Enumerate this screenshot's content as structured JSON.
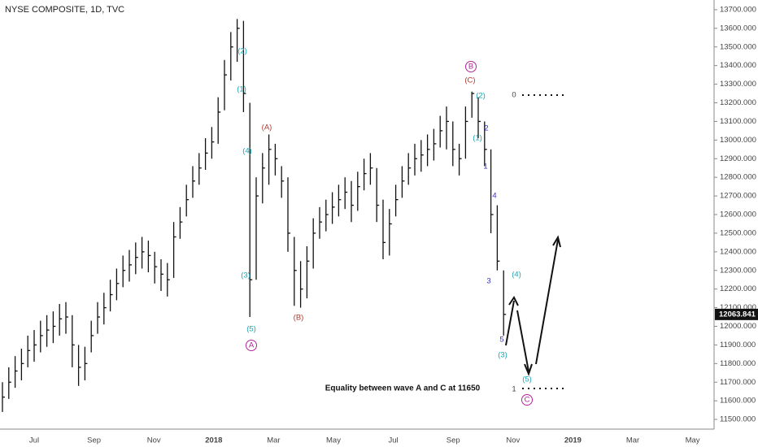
{
  "chart_data": {
    "type": "ohlc",
    "title": "NYSE COMPOSITE, 1D, TVC",
    "color": "#111111",
    "categories": [
      "Jul",
      "Sep",
      "Nov",
      "2018",
      "Mar",
      "May",
      "Jul",
      "Sep",
      "Nov",
      "2019",
      "Mar",
      "May"
    ],
    "close": [
      11620,
      11700,
      11760,
      11800,
      11870,
      11900,
      11950,
      11980,
      12000,
      12040,
      12050,
      11900,
      11780,
      11800,
      11950,
      12050,
      12100,
      12170,
      12230,
      12300,
      12330,
      12370,
      12400,
      12380,
      12320,
      12280,
      12250,
      12480,
      12560,
      12680,
      12780,
      12850,
      12930,
      12990,
      13150,
      13350,
      13500,
      13600,
      13250,
      12250,
      12700,
      12850,
      12950,
      12900,
      12780,
      12500,
      12300,
      12200,
      12350,
      12500,
      12560,
      12600,
      12640,
      12680,
      12720,
      12650,
      12750,
      12820,
      12850,
      12650,
      12450,
      12550,
      12680,
      12780,
      12850,
      12900,
      12920,
      12950,
      12980,
      13050,
      13100,
      12950,
      12900,
      13100,
      13250,
      13100,
      12950,
      12600,
      12350,
      12064
    ],
    "high": [
      11700,
      11780,
      11840,
      11880,
      11950,
      11980,
      12030,
      12060,
      12080,
      12120,
      12130,
      12060,
      11900,
      11890,
      12030,
      12130,
      12180,
      12250,
      12310,
      12380,
      12410,
      12450,
      12480,
      12460,
      12400,
      12360,
      12340,
      12560,
      12640,
      12760,
      12860,
      12930,
      13010,
      13070,
      13230,
      13430,
      13580,
      13650,
      13640,
      13200,
      12800,
      12930,
      13030,
      12980,
      12860,
      12800,
      12480,
      12350,
      12430,
      12580,
      12640,
      12680,
      12720,
      12760,
      12800,
      12780,
      12830,
      12900,
      12930,
      12850,
      12680,
      12630,
      12760,
      12860,
      12930,
      12980,
      13000,
      13030,
      13060,
      13130,
      13180,
      13100,
      12980,
      13180,
      13260,
      13230,
      13100,
      12950,
      12650,
      12300
    ],
    "low": [
      11540,
      11610,
      11670,
      11710,
      11780,
      11810,
      11860,
      11890,
      11910,
      11950,
      11960,
      11780,
      11680,
      11710,
      11860,
      11960,
      12010,
      12080,
      12140,
      12210,
      12240,
      12280,
      12310,
      12290,
      12230,
      12190,
      12160,
      12260,
      12470,
      12590,
      12690,
      12760,
      12840,
      12900,
      12980,
      13160,
      13320,
      13420,
      13150,
      12050,
      12250,
      12660,
      12760,
      12810,
      12690,
      12400,
      12110,
      12100,
      12150,
      12310,
      12470,
      12510,
      12550,
      12590,
      12630,
      12560,
      12620,
      12730,
      12760,
      12560,
      12360,
      12380,
      12590,
      12690,
      12760,
      12810,
      12830,
      12860,
      12890,
      12960,
      12950,
      12860,
      12810,
      12900,
      13120,
      13010,
      12860,
      12500,
      12300,
      11950
    ],
    "last_price": 12063.841,
    "ylim": [
      11448,
      13752
    ],
    "yticks": [
      {
        "value": 11500,
        "label": "11500.000"
      },
      {
        "value": 11600,
        "label": "11600.000"
      },
      {
        "value": 11700,
        "label": "11700.000"
      },
      {
        "value": 11800,
        "label": "11800.000"
      },
      {
        "value": 11900,
        "label": "11900.000"
      },
      {
        "value": 12000,
        "label": "12000.000"
      },
      {
        "value": 12100,
        "label": "12100.000"
      },
      {
        "value": 12200,
        "label": "12200.000"
      },
      {
        "value": 12300,
        "label": "12300.000"
      },
      {
        "value": 12400,
        "label": "12400.000"
      },
      {
        "value": 12500,
        "label": "12500.000"
      },
      {
        "value": 12600,
        "label": "12600.000"
      },
      {
        "value": 12700,
        "label": "12700.000"
      },
      {
        "value": 12800,
        "label": "12800.000"
      },
      {
        "value": 12900,
        "label": "12900.000"
      },
      {
        "value": 13000,
        "label": "13000.000"
      },
      {
        "value": 13100,
        "label": "13100.000"
      },
      {
        "value": 13200,
        "label": "13200.000"
      },
      {
        "value": 13300,
        "label": "13300.000"
      },
      {
        "value": 13400,
        "label": "13400.000"
      },
      {
        "value": 13500,
        "label": "13500.000"
      },
      {
        "value": 13600,
        "label": "13600.000"
      },
      {
        "value": 13700,
        "label": "13700.000"
      }
    ],
    "annotations": [
      {
        "text": "(2)",
        "color": "#1aa6b0"
      },
      {
        "text": "(1)",
        "color": "#1aa6b0"
      },
      {
        "text": "(4)",
        "color": "#1aa6b0"
      },
      {
        "text": "(3)",
        "color": "#1aa6b0"
      },
      {
        "text": "(5)",
        "color": "#1aa6b0"
      },
      {
        "text": "A",
        "color": "#b0249a",
        "circled": true
      },
      {
        "text": "(A)",
        "color": "#b23a2e"
      },
      {
        "text": "(B)",
        "color": "#b23a2e"
      },
      {
        "text": "B",
        "color": "#b0249a",
        "circled": true
      },
      {
        "text": "(C)",
        "color": "#b23a2e"
      },
      {
        "text": "(2)",
        "color": "#1aa6b0"
      },
      {
        "text": "2",
        "color": "#3535c0"
      },
      {
        "text": "(1)",
        "color": "#1aa6b0"
      },
      {
        "text": "1",
        "color": "#3535c0"
      },
      {
        "text": "4",
        "color": "#3535c0"
      },
      {
        "text": "3",
        "color": "#3535c0"
      },
      {
        "text": "(4)",
        "color": "#1aa6b0"
      },
      {
        "text": "5",
        "color": "#3535c0"
      },
      {
        "text": "(3)",
        "color": "#1aa6b0"
      },
      {
        "text": "(5)",
        "color": "#1aa6b0"
      },
      {
        "text": "C",
        "color": "#b0249a",
        "circled": true
      },
      {
        "text": "0",
        "color": "#444444"
      },
      {
        "text": "1",
        "color": "#444444"
      },
      {
        "text": "Equality between wave A and C at 11650",
        "color": "#111111"
      }
    ]
  }
}
